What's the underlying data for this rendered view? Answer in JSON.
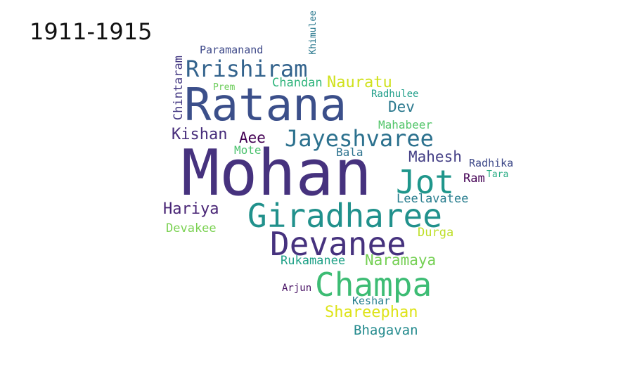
{
  "title": "1911-1915",
  "words": [
    {
      "text": "Mohan",
      "color": "#46327e"
    },
    {
      "text": "Ratana",
      "color": "#3b4f8a"
    },
    {
      "text": "Giradharee",
      "color": "#21918c"
    },
    {
      "text": "Devanee",
      "color": "#46327e"
    },
    {
      "text": "Champa",
      "color": "#3dbc74"
    },
    {
      "text": "Jot",
      "color": "#1f968b"
    },
    {
      "text": "Jayeshvaree",
      "color": "#2c718e"
    },
    {
      "text": "Rrishiram",
      "color": "#33638d"
    },
    {
      "text": "Shareephan",
      "color": "#dde318"
    },
    {
      "text": "Nauratu",
      "color": "#d0e11c"
    },
    {
      "text": "Naramaya",
      "color": "#75d054"
    },
    {
      "text": "Hariya",
      "color": "#482475"
    },
    {
      "text": "Kishan",
      "color": "#472d7b"
    },
    {
      "text": "Mahesh",
      "color": "#433e85"
    },
    {
      "text": "Bhagavan",
      "color": "#238a8d"
    },
    {
      "text": "Aee",
      "color": "#440154"
    },
    {
      "text": "Dev",
      "color": "#2a788e"
    },
    {
      "text": "Devakee",
      "color": "#7ad151"
    },
    {
      "text": "Leelavatee",
      "color": "#287d8e"
    },
    {
      "text": "Rukamanee",
      "color": "#1fa187"
    },
    {
      "text": "Chintaram",
      "color": "#443983"
    },
    {
      "text": "Durga",
      "color": "#bddf26"
    },
    {
      "text": "Chandan",
      "color": "#2fb47c"
    },
    {
      "text": "Ram",
      "color": "#440154"
    },
    {
      "text": "Radhika",
      "color": "#3e4989"
    },
    {
      "text": "Bala",
      "color": "#2c728e"
    },
    {
      "text": "Mahabeer",
      "color": "#52c569"
    },
    {
      "text": "Mote",
      "color": "#4ac16d"
    },
    {
      "text": "Paramanand",
      "color": "#3e4989"
    },
    {
      "text": "Keshar",
      "color": "#27808e"
    },
    {
      "text": "Radhulee",
      "color": "#1f9e89"
    },
    {
      "text": "Arjun",
      "color": "#471063"
    },
    {
      "text": "Khimulee",
      "color": "#2a788e"
    },
    {
      "text": "Prem",
      "color": "#6ccd5a"
    },
    {
      "text": "Tara",
      "color": "#25ab82"
    }
  ]
}
